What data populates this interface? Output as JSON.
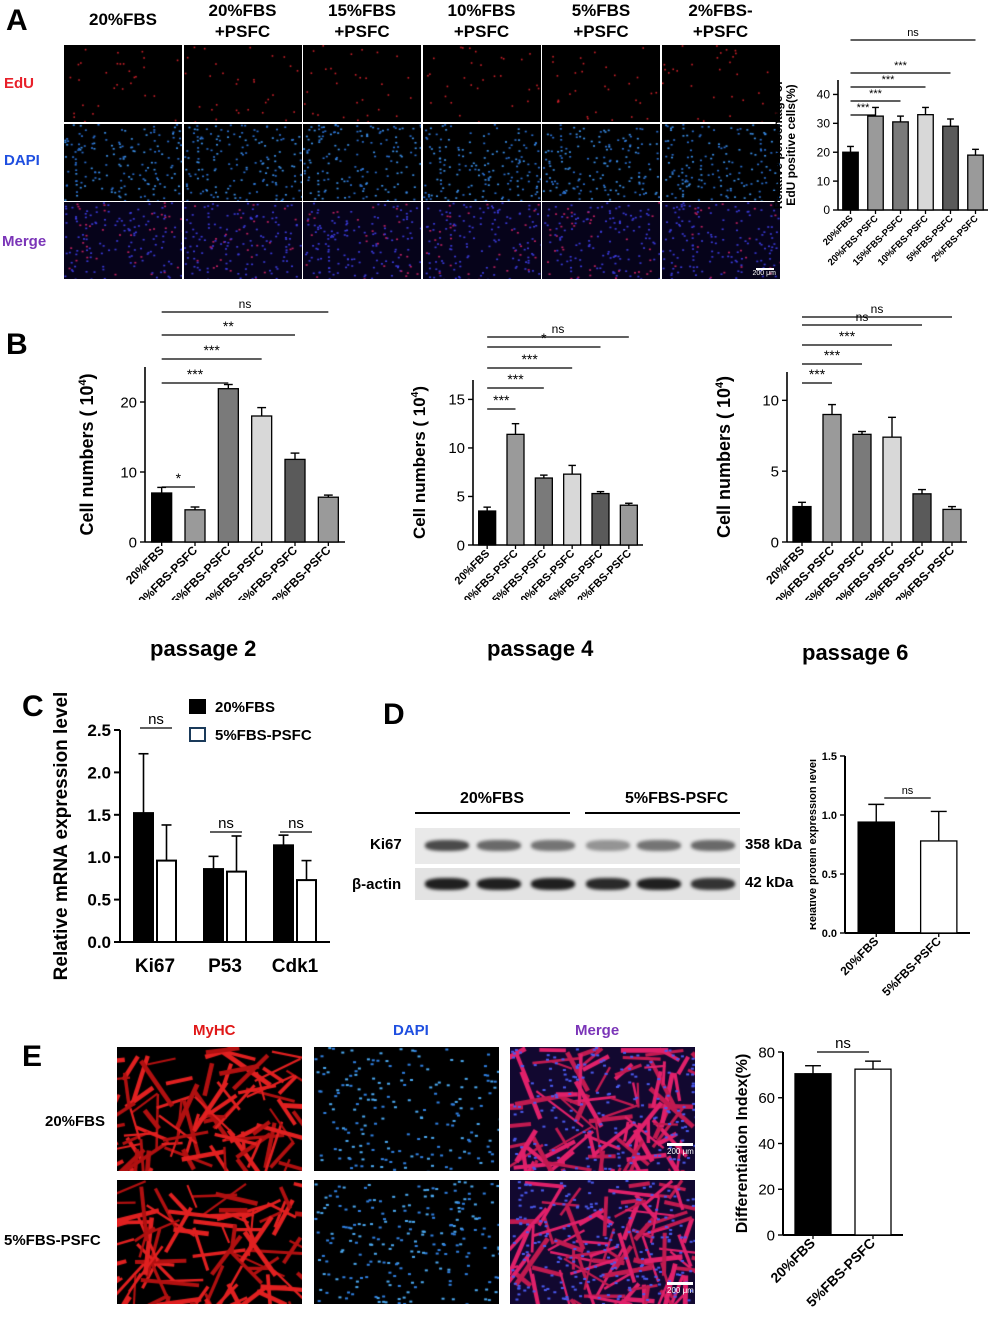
{
  "panel_labels": {
    "A": "A",
    "B": "B",
    "C": "C",
    "D": "D",
    "E": "E"
  },
  "colors": {
    "edu": "#e8202a",
    "dapi": "#1f4fe0",
    "merge": "#7b35b8",
    "myhc": "#e01818"
  },
  "panelA": {
    "columns": [
      "20%FBS",
      "20%FBS\n+PSFC",
      "15%FBS\n+PSFC",
      "10%FBS\n+PSFC",
      "5%FBS\n+PSFC",
      "2%FBS-\n+PSFC"
    ],
    "rows": [
      "EdU",
      "DAPI",
      "Merge"
    ],
    "scale_bar": "200 μm"
  },
  "panelD": {
    "group1": "20%FBS",
    "group2": "5%FBS-PSFC",
    "band1_label": "Ki67",
    "band2_label": "β-actin",
    "band1_kda": "358 kDa",
    "band2_kda": "42 kDa",
    "band1_intensity": [
      0.75,
      0.6,
      0.55,
      0.4,
      0.55,
      0.6
    ],
    "band2_intensity": [
      0.95,
      0.95,
      0.95,
      0.9,
      0.95,
      0.85
    ]
  },
  "panelE": {
    "columns": [
      "MyHC",
      "DAPI",
      "Merge"
    ],
    "rows": [
      "20%FBS",
      "5%FBS-PSFC"
    ],
    "scale_bar": "200 μm"
  },
  "chart_data": [
    {
      "id": "A",
      "type": "bar",
      "categories": [
        "20%FBS",
        "20%FBS-PSFC",
        "15%FBS-PSFC",
        "10%FBS-PSFC",
        "5%FBS-PSFC",
        "2%FBS-PSFC"
      ],
      "values": [
        20,
        32.5,
        30.5,
        33,
        29,
        19
      ],
      "errors": [
        2,
        3,
        2,
        2.5,
        2.5,
        2
      ],
      "colors": [
        "#000000",
        "#9a9a9a",
        "#7a7a7a",
        "#d8d8d8",
        "#5a5a5a",
        "#9a9a9a"
      ],
      "ylabel": "Relative percentage of\nEdU positive cells(%)",
      "ylim": [
        0,
        45
      ],
      "yticks": [
        0,
        10,
        20,
        30,
        40
      ],
      "significance": [
        "***",
        "***",
        "***",
        "***",
        "ns"
      ]
    },
    {
      "id": "B1",
      "type": "bar",
      "title": "passage 2",
      "categories": [
        "20%FBS",
        "20%FBS-PSFC",
        "15%FBS-PSFC",
        "10%FBS-PSFC",
        "5%FBS-PSFC",
        "2%FBS-PSFC"
      ],
      "values": [
        7,
        4.6,
        21.9,
        18,
        11.8,
        6.4
      ],
      "errors": [
        0.8,
        0.4,
        0.6,
        1.2,
        0.9,
        0.3
      ],
      "colors": [
        "#000000",
        "#9a9a9a",
        "#7a7a7a",
        "#d8d8d8",
        "#5a5a5a",
        "#9a9a9a"
      ],
      "ylabel": "Cell numbers ( 10^4)",
      "ylim": [
        0,
        25
      ],
      "yticks": [
        0,
        10,
        20
      ],
      "significance": [
        "*",
        "***",
        "***",
        "**",
        "ns"
      ]
    },
    {
      "id": "B2",
      "type": "bar",
      "title": "passage 4",
      "categories": [
        "20%FBS",
        "20%FBS-PSFC",
        "15%FBS-PSFC",
        "10%FBS-PSFC",
        "5%FBS-PSFC",
        "2%FBS-PSFC"
      ],
      "values": [
        3.5,
        11.4,
        6.9,
        7.3,
        5.3,
        4.1
      ],
      "errors": [
        0.4,
        1.1,
        0.3,
        0.9,
        0.2,
        0.2
      ],
      "colors": [
        "#000000",
        "#9a9a9a",
        "#7a7a7a",
        "#d8d8d8",
        "#5a5a5a",
        "#9a9a9a"
      ],
      "ylabel": "Cell numbers ( 10^4)",
      "ylim": [
        0,
        17
      ],
      "yticks": [
        0,
        5,
        10,
        15
      ],
      "significance": [
        "***",
        "***",
        "***",
        "*",
        "ns"
      ]
    },
    {
      "id": "B3",
      "type": "bar",
      "title": "passage 6",
      "categories": [
        "20%FBS",
        "20%FBS-PSFC",
        "15%FBS-PSFC",
        "10%FBS-PSFC",
        "5%FBS-PSFC",
        "2%FBS-PSFC"
      ],
      "values": [
        2.5,
        9,
        7.6,
        7.4,
        3.4,
        2.3
      ],
      "errors": [
        0.3,
        0.7,
        0.2,
        1.4,
        0.3,
        0.2
      ],
      "colors": [
        "#000000",
        "#9a9a9a",
        "#7a7a7a",
        "#d8d8d8",
        "#5a5a5a",
        "#9a9a9a"
      ],
      "ylabel": "Cell numbers ( 10^4)",
      "ylim": [
        0,
        12
      ],
      "yticks": [
        0,
        5,
        10
      ],
      "significance": [
        "***",
        "***",
        "***",
        "ns",
        "ns"
      ]
    },
    {
      "id": "C",
      "type": "bar",
      "categories": [
        "Ki67",
        "P53",
        "Cdk1"
      ],
      "series": [
        {
          "name": "20%FBS",
          "values": [
            1.52,
            0.86,
            1.14
          ],
          "errors": [
            0.7,
            0.15,
            0.12
          ]
        },
        {
          "name": "5%FBS-PSFC",
          "values": [
            0.96,
            0.83,
            0.73
          ],
          "errors": [
            0.42,
            0.42,
            0.23
          ]
        }
      ],
      "ylabel": "Relative mRNA expression level",
      "ylim": [
        0,
        2.5
      ],
      "yticks": [
        "0.0",
        "0.5",
        "1.0",
        "1.5",
        "2.0",
        "2.5"
      ],
      "significance": [
        "ns",
        "ns",
        "ns"
      ],
      "legend": "top-right"
    },
    {
      "id": "D",
      "type": "bar",
      "categories": [
        "20%FBS",
        "5%FBS-PSFC"
      ],
      "values": [
        0.94,
        0.78
      ],
      "errors": [
        0.15,
        0.25
      ],
      "colors": [
        "#000000",
        "#ffffff"
      ],
      "ylabel": "Relative protein expression level",
      "ylim": [
        0,
        1.5
      ],
      "yticks": [
        "0.0",
        "0.5",
        "1.0",
        "1.5"
      ],
      "significance": [
        "ns"
      ]
    },
    {
      "id": "E",
      "type": "bar",
      "categories": [
        "20%FBS",
        "5%FBS-PSFC"
      ],
      "values": [
        70.5,
        72.5
      ],
      "errors": [
        3.5,
        3.5
      ],
      "colors": [
        "#000000",
        "#ffffff"
      ],
      "ylabel": "Differentiation Index(%)",
      "ylim": [
        0,
        80
      ],
      "yticks": [
        0,
        20,
        40,
        60,
        80
      ],
      "significance": [
        "ns"
      ]
    }
  ]
}
